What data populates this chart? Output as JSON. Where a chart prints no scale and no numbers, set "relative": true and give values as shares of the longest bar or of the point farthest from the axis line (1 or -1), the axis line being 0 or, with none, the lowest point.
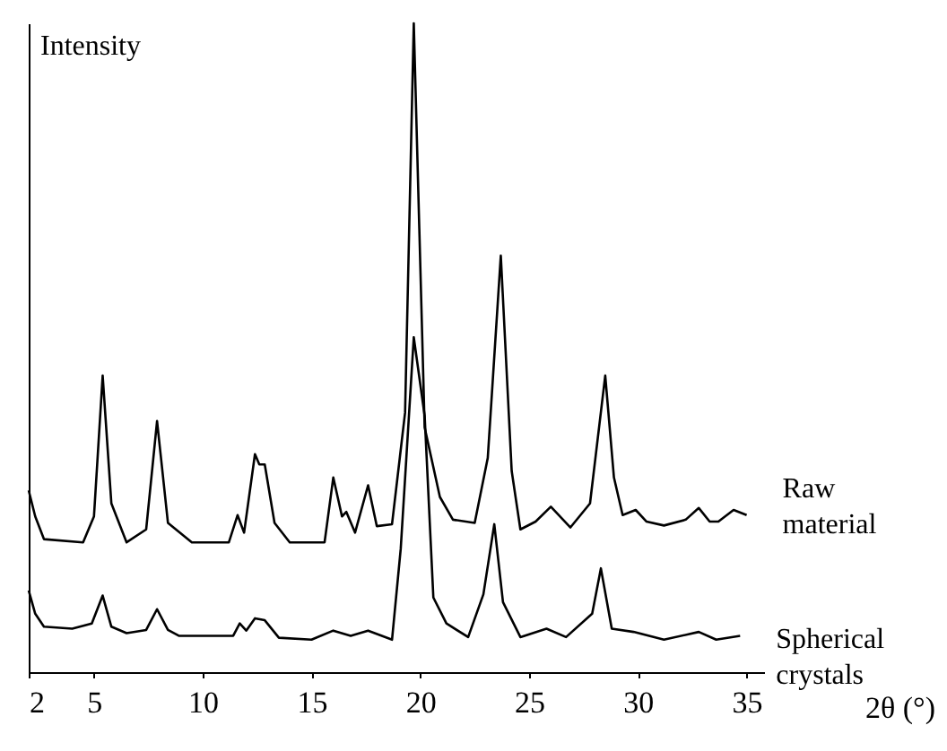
{
  "chart_data": {
    "type": "line",
    "relative": true,
    "ylabel": "Intensity",
    "xlabel": "2θ (°)",
    "xlim": [
      2,
      35.8
    ],
    "xticks": [
      2,
      5,
      10,
      15,
      20,
      25,
      30,
      35
    ],
    "tick_labels": "x",
    "grid": false,
    "legend": false,
    "marker": "none",
    "line_style": "solid",
    "series": [
      {
        "name": "Raw material",
        "color": "#000000",
        "x": [
          2.0,
          2.3,
          2.7,
          4.5,
          5.0,
          5.4,
          5.8,
          6.5,
          7.4,
          7.9,
          8.4,
          9.5,
          11.2,
          11.6,
          11.9,
          12.4,
          12.6,
          12.85,
          13.3,
          14.0,
          15.6,
          16.0,
          16.4,
          16.6,
          17.0,
          17.6,
          18.0,
          18.7,
          19.3,
          19.7,
          20.2,
          20.9,
          21.5,
          22.5,
          23.1,
          23.7,
          24.2,
          24.6,
          25.3,
          26.0,
          26.9,
          27.8,
          28.5,
          28.9,
          29.3,
          29.9,
          30.4,
          31.2,
          32.2,
          32.8,
          33.3,
          33.7,
          34.4,
          35.0
        ],
        "values": [
          0.28,
          0.24,
          0.205,
          0.2,
          0.24,
          0.457,
          0.26,
          0.2,
          0.22,
          0.387,
          0.23,
          0.2,
          0.2,
          0.242,
          0.215,
          0.336,
          0.32,
          0.32,
          0.23,
          0.2,
          0.2,
          0.3,
          0.24,
          0.247,
          0.215,
          0.288,
          0.225,
          0.228,
          0.4,
          1.0,
          0.377,
          0.27,
          0.235,
          0.23,
          0.33,
          0.642,
          0.31,
          0.22,
          0.232,
          0.255,
          0.223,
          0.26,
          0.457,
          0.3,
          0.242,
          0.25,
          0.232,
          0.226,
          0.235,
          0.253,
          0.232,
          0.232,
          0.25,
          0.242
        ]
      },
      {
        "name": "Spherical crystals",
        "color": "#000000",
        "x": [
          2.0,
          2.3,
          2.7,
          4.0,
          4.9,
          5.4,
          5.8,
          6.5,
          7.4,
          7.9,
          8.4,
          8.9,
          11.4,
          11.7,
          12.0,
          12.4,
          12.85,
          13.5,
          15.0,
          16.0,
          16.8,
          17.6,
          18.7,
          19.1,
          19.7,
          20.2,
          20.6,
          21.2,
          22.2,
          22.9,
          23.4,
          23.8,
          24.6,
          25.8,
          26.7,
          27.9,
          28.3,
          28.8,
          29.8,
          31.2,
          32.8,
          33.6,
          34.7
        ],
        "values": [
          0.126,
          0.09,
          0.07,
          0.067,
          0.075,
          0.118,
          0.07,
          0.06,
          0.065,
          0.097,
          0.065,
          0.056,
          0.056,
          0.075,
          0.064,
          0.083,
          0.08,
          0.053,
          0.05,
          0.064,
          0.056,
          0.064,
          0.05,
          0.19,
          0.516,
          0.395,
          0.115,
          0.075,
          0.054,
          0.12,
          0.228,
          0.108,
          0.054,
          0.067,
          0.054,
          0.09,
          0.16,
          0.067,
          0.062,
          0.05,
          0.062,
          0.05,
          0.056
        ]
      }
    ]
  }
}
